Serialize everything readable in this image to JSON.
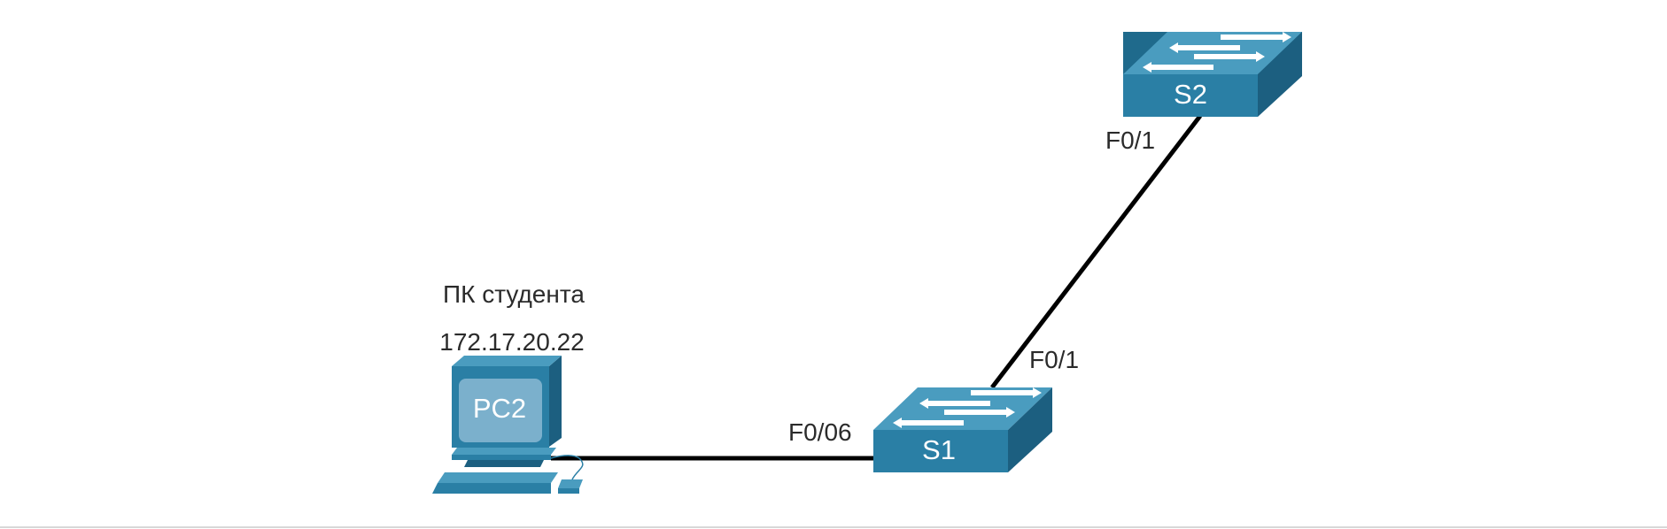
{
  "diagram": {
    "type": "network-topology",
    "colors": {
      "device_front": "#2a7fa5",
      "device_top": "#4a9cbf",
      "device_side": "#1c5f80",
      "link": "#000000",
      "text": "#2b2b2b",
      "bottom_border": "#d8d8d8"
    },
    "nodes": {
      "pc2": {
        "name": "PC2",
        "caption": "ПК студента",
        "ip": "172.17.20.22",
        "icon": "computer-icon"
      },
      "s1": {
        "name": "S1",
        "icon": "switch-icon"
      },
      "s2": {
        "name": "S2",
        "icon": "switch-icon"
      }
    },
    "links": [
      {
        "from": "PC2",
        "to": "S1",
        "to_port": "F0/06"
      },
      {
        "from": "S1",
        "from_port": "F0/1",
        "to": "S2",
        "to_port": "F0/1"
      }
    ]
  }
}
